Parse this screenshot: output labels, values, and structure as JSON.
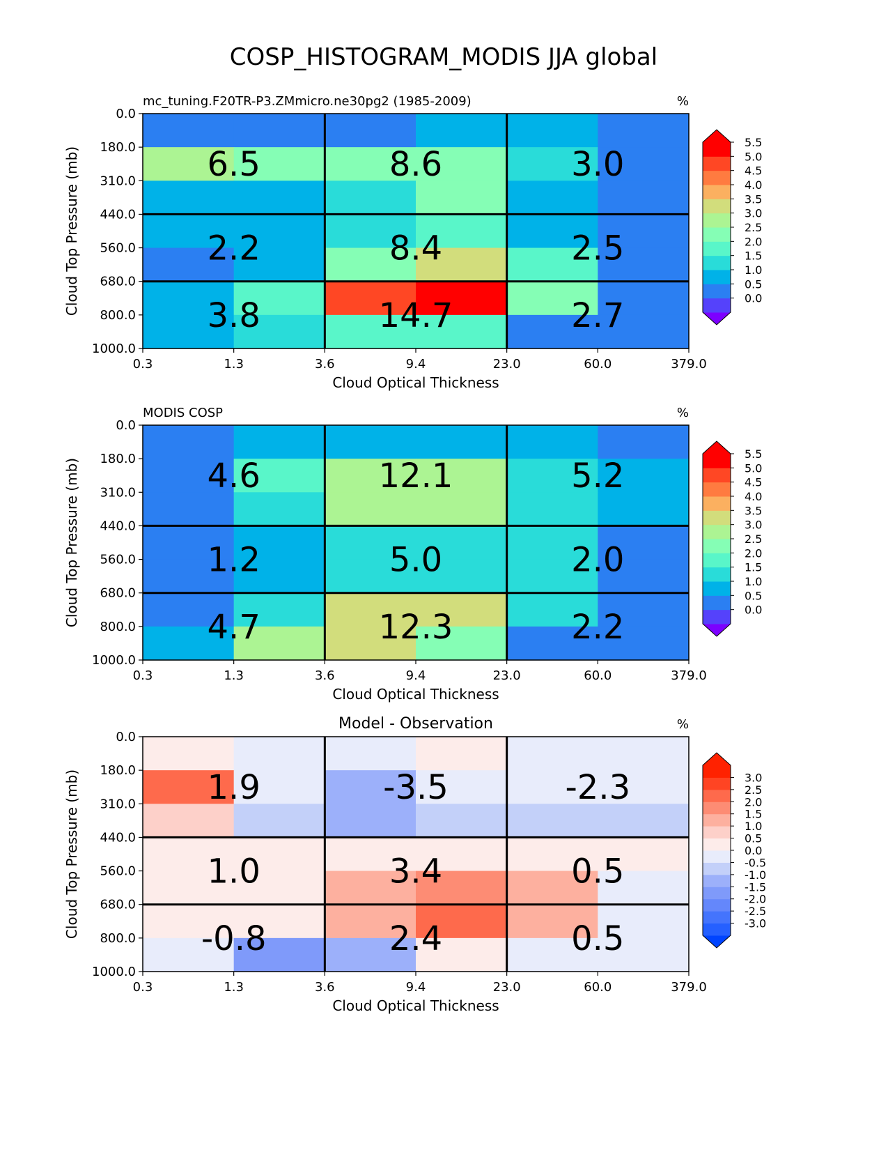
{
  "title": "COSP_HISTOGRAM_MODIS JJA global",
  "chart_data": [
    {
      "type": "heatmap",
      "title": "mc_tuning.F20TR-P3.ZMmicro.ne30pg2 (1985-2009)",
      "units": "%",
      "xlabel": "Cloud Optical Thickness",
      "ylabel": "Cloud Top Pressure (mb)",
      "xticks": [
        "0.3",
        "1.3",
        "3.6",
        "9.4",
        "23.0",
        "60.0",
        "379.0"
      ],
      "yticks": [
        "0.0",
        "180.0",
        "310.0",
        "440.0",
        "560.0",
        "680.0",
        "800.0",
        "1000.0"
      ],
      "rows": [
        "0.0-180.0",
        "180.0-310.0",
        "310.0-440.0",
        "440.0-560.0",
        "560.0-680.0",
        "680.0-800.0",
        "800.0-1000.0"
      ],
      "cols": [
        "0.3-1.3",
        "1.3-3.6",
        "3.6-9.4",
        "9.4-23.0",
        "23.0-60.0",
        "60.0-379.0"
      ],
      "values": [
        [
          0.25,
          0.25,
          0.25,
          0.75,
          0.75,
          0.25
        ],
        [
          2.75,
          2.25,
          2.25,
          2.25,
          1.25,
          0.25
        ],
        [
          0.75,
          0.75,
          1.25,
          2.25,
          0.75,
          0.25
        ],
        [
          0.75,
          0.75,
          1.25,
          1.75,
          0.75,
          0.25
        ],
        [
          0.25,
          0.75,
          2.25,
          3.25,
          1.75,
          0.25
        ],
        [
          0.75,
          1.75,
          4.75,
          5.75,
          2.25,
          0.25
        ],
        [
          0.75,
          1.25,
          1.75,
          1.75,
          0.25,
          0.25
        ]
      ],
      "box_labels": [
        [
          "6.5",
          "8.6",
          "3.0"
        ],
        [
          "2.2",
          "8.4",
          "2.5"
        ],
        [
          "3.8",
          "14.7",
          "2.7"
        ]
      ],
      "colorbar": {
        "ticks": [
          "0.0",
          "0.5",
          "1.0",
          "1.5",
          "2.0",
          "2.5",
          "3.0",
          "3.5",
          "4.0",
          "4.5",
          "5.0",
          "5.5"
        ],
        "colors": [
          "#5542fb",
          "#2b7ff2",
          "#00b2e8",
          "#29dcd9",
          "#59f6c9",
          "#85feb5",
          "#acf493",
          "#d2dd7c",
          "#fbb060",
          "#ff7b40",
          "#ff4724",
          "#ff0000"
        ],
        "under": "#7c00ff",
        "over": "#ff0000"
      }
    },
    {
      "type": "heatmap",
      "title": "MODIS COSP",
      "units": "%",
      "xlabel": "Cloud Optical Thickness",
      "ylabel": "Cloud Top Pressure (mb)",
      "xticks": [
        "0.3",
        "1.3",
        "3.6",
        "9.4",
        "23.0",
        "60.0",
        "379.0"
      ],
      "yticks": [
        "0.0",
        "180.0",
        "310.0",
        "440.0",
        "560.0",
        "680.0",
        "800.0",
        "1000.0"
      ],
      "rows": [
        "0.0-180.0",
        "180.0-310.0",
        "310.0-440.0",
        "440.0-560.0",
        "560.0-680.0",
        "680.0-800.0",
        "800.0-1000.0"
      ],
      "cols": [
        "0.3-1.3",
        "1.3-3.6",
        "3.6-9.4",
        "9.4-23.0",
        "23.0-60.0",
        "60.0-379.0"
      ],
      "values": [
        [
          0.25,
          0.75,
          0.75,
          0.75,
          0.75,
          0.25
        ],
        [
          0.25,
          1.75,
          2.75,
          2.75,
          1.25,
          0.75
        ],
        [
          0.25,
          1.25,
          2.75,
          2.75,
          1.25,
          0.75
        ],
        [
          0.25,
          0.75,
          1.25,
          1.25,
          1.25,
          0.25
        ],
        [
          0.25,
          0.75,
          1.25,
          1.25,
          1.25,
          0.25
        ],
        [
          0.25,
          1.25,
          3.25,
          3.25,
          1.25,
          0.25
        ],
        [
          0.75,
          2.75,
          3.25,
          2.25,
          0.25,
          0.25
        ]
      ],
      "box_labels": [
        [
          "4.6",
          "12.1",
          "5.2"
        ],
        [
          "1.2",
          "5.0",
          "2.0"
        ],
        [
          "4.7",
          "12.3",
          "2.2"
        ]
      ],
      "colorbar": {
        "ticks": [
          "0.0",
          "0.5",
          "1.0",
          "1.5",
          "2.0",
          "2.5",
          "3.0",
          "3.5",
          "4.0",
          "4.5",
          "5.0",
          "5.5"
        ],
        "colors": [
          "#5542fb",
          "#2b7ff2",
          "#00b2e8",
          "#29dcd9",
          "#59f6c9",
          "#85feb5",
          "#acf493",
          "#d2dd7c",
          "#fbb060",
          "#ff7b40",
          "#ff4724",
          "#ff0000"
        ],
        "under": "#7c00ff",
        "over": "#ff0000"
      }
    },
    {
      "type": "heatmap",
      "title": "Model - Observation",
      "units": "%",
      "xlabel": "Cloud Optical Thickness",
      "ylabel": "Cloud Top Pressure (mb)",
      "xticks": [
        "0.3",
        "1.3",
        "3.6",
        "9.4",
        "23.0",
        "60.0",
        "379.0"
      ],
      "yticks": [
        "0.0",
        "180.0",
        "310.0",
        "440.0",
        "560.0",
        "680.0",
        "800.0",
        "1000.0"
      ],
      "rows": [
        "0.0-180.0",
        "180.0-310.0",
        "310.0-440.0",
        "440.0-560.0",
        "560.0-680.0",
        "680.0-800.0",
        "800.0-1000.0"
      ],
      "cols": [
        "0.3-1.3",
        "1.3-3.6",
        "3.6-9.4",
        "9.4-23.0",
        "23.0-60.0",
        "60.0-379.0"
      ],
      "values": [
        [
          0.25,
          -0.25,
          -0.25,
          0.25,
          -0.25,
          -0.25
        ],
        [
          2.25,
          -0.25,
          -1.25,
          -0.25,
          -0.25,
          -0.25
        ],
        [
          0.75,
          -0.75,
          -1.25,
          -0.75,
          -0.75,
          -0.75
        ],
        [
          0.25,
          0.25,
          0.25,
          0.25,
          0.25,
          0.25
        ],
        [
          0.25,
          0.25,
          1.25,
          1.75,
          1.25,
          -0.25
        ],
        [
          0.25,
          0.25,
          1.25,
          2.25,
          1.25,
          -0.25
        ],
        [
          -0.25,
          -1.75,
          -1.25,
          0.25,
          -0.25,
          -0.25
        ]
      ],
      "box_labels": [
        [
          "1.9",
          "-3.5",
          "-2.3"
        ],
        [
          "1.0",
          "3.4",
          "0.5"
        ],
        [
          "-0.8",
          "2.4",
          "0.5"
        ]
      ],
      "colorbar": {
        "ticks": [
          "-3.0",
          "-2.5",
          "-2.0",
          "-1.5",
          "-1.0",
          "-0.5",
          "0.0",
          "0.5",
          "1.0",
          "1.5",
          "2.0",
          "2.5",
          "3.0"
        ],
        "colors": [
          "#2560ff",
          "#4474fd",
          "#6487fb",
          "#7f9afa",
          "#9cb0fa",
          "#c3d0f9",
          "#e8ecfb",
          "#fdecea",
          "#fdd0c9",
          "#fdb09f",
          "#fd8c74",
          "#fe6a4c",
          "#ff4423",
          "#ff2200"
        ],
        "under": "#0044ff",
        "over": "#ff2200"
      }
    }
  ]
}
